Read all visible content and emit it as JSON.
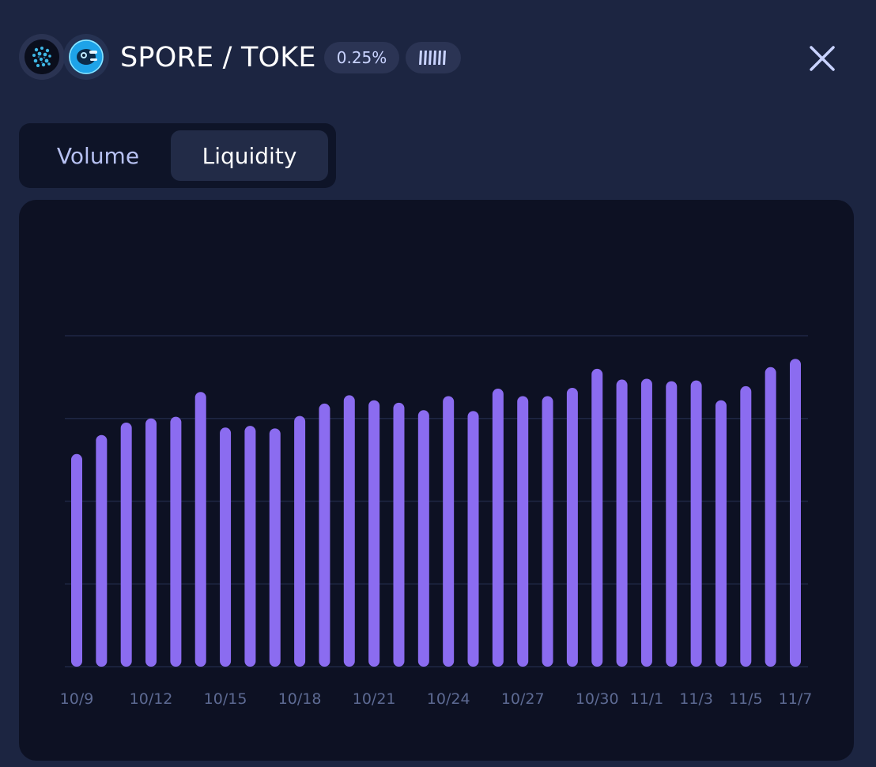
{
  "header": {
    "token_a_icon": "spore-token-icon",
    "token_b_icon": "toke-token-icon",
    "pair_title": "SPORE / TOKE",
    "fee_tier": "0.25%",
    "protocol_icon": "protocol-stripes-icon",
    "close_icon": "close-icon"
  },
  "tabs": {
    "volume_label": "Volume",
    "liquidity_label": "Liquidity",
    "active": "Liquidity"
  },
  "colors": {
    "background": "#1c2541",
    "card": "#0d1123",
    "bar": "#8b6cf0",
    "tick_label": "#5d6a93",
    "gridline": "#1f2744"
  },
  "chart_data": {
    "type": "bar",
    "title": "",
    "xlabel": "",
    "ylabel": "",
    "ylim": [
      0,
      4
    ],
    "grid": true,
    "categories": [
      "10/9",
      "10/10",
      "10/11",
      "10/12",
      "10/13",
      "10/14",
      "10/15",
      "10/16",
      "10/17",
      "10/18",
      "10/19",
      "10/20",
      "10/21",
      "10/22",
      "10/23",
      "10/24",
      "10/25",
      "10/26",
      "10/27",
      "10/28",
      "10/29",
      "10/30",
      "10/31",
      "11/1",
      "11/2",
      "11/3",
      "11/4",
      "11/5",
      "11/6",
      "11/7"
    ],
    "tick_labels": [
      "10/9",
      "10/12",
      "10/15",
      "10/18",
      "10/21",
      "10/24",
      "10/27",
      "10/30",
      "11/1",
      "11/3",
      "11/5",
      "11/7"
    ],
    "values": [
      2.57,
      2.8,
      2.95,
      3.0,
      3.02,
      3.32,
      2.89,
      2.91,
      2.88,
      3.03,
      3.18,
      3.28,
      3.22,
      3.19,
      3.1,
      3.27,
      3.09,
      3.36,
      3.27,
      3.27,
      3.37,
      3.6,
      3.47,
      3.48,
      3.45,
      3.46,
      3.22,
      3.39,
      3.62,
      3.72
    ]
  }
}
